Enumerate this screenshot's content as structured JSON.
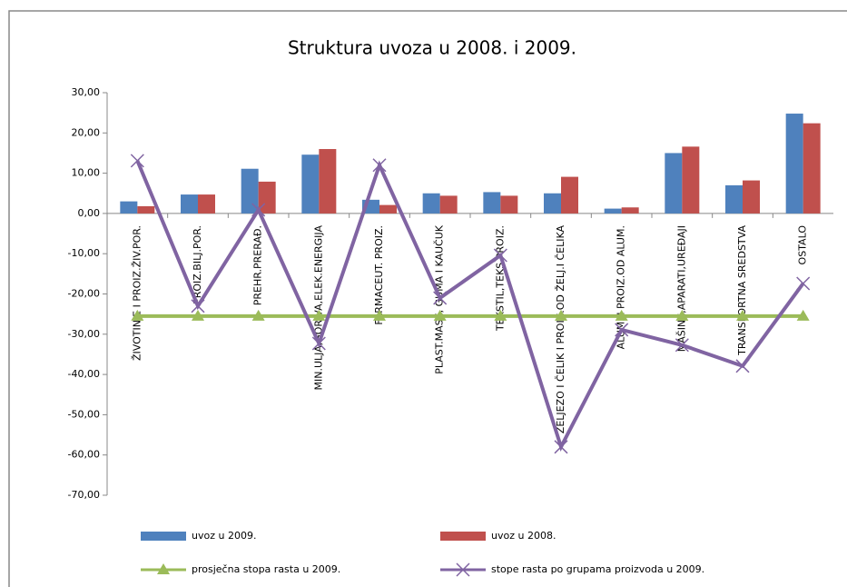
{
  "chart_data": {
    "type": "bar",
    "title": "Struktura uvoza u 2008. i 2009.",
    "categories": [
      "ŽIVOTINJE I PROIZ.ŽIV.POR.",
      "PROIZ.BILJ.POR.",
      "PREHR.PRERAĐ.",
      "MIN.ULJA,GORIVA,ELEK.ENERGIJA",
      "FARMACEUT. PROIZ.",
      "PLAST.MASE, GUMA I KAUČUK",
      "TEKSTIL,TEKS.PROIZ.",
      "ŽELJEZO I ČELIK I PROIZ.OD ŽELJ.I ČELIKA",
      "ALUM. I PROIZ.OD ALUM.",
      "MAŠINE,APARATI,UREĐAJI",
      "TRANSPORTNA SREDSTVA",
      "OSTALO"
    ],
    "series": [
      {
        "name": "uvoz u 2009.",
        "type": "bar",
        "color": "#4f81bd",
        "values": [
          3.0,
          4.7,
          11.1,
          14.6,
          3.4,
          5.0,
          5.3,
          5.0,
          1.2,
          15.0,
          7.0,
          24.8
        ]
      },
      {
        "name": "uvoz u 2008.",
        "type": "bar",
        "color": "#c0504d",
        "values": [
          1.8,
          4.7,
          7.9,
          16.0,
          2.1,
          4.4,
          4.4,
          9.1,
          1.5,
          16.6,
          8.2,
          22.4
        ]
      },
      {
        "name": "prosječna stopa rasta u 2009.",
        "type": "line",
        "marker": "triangle",
        "color": "#9bbb59",
        "values": [
          -25.5,
          -25.5,
          -25.5,
          -25.5,
          -25.5,
          -25.5,
          -25.5,
          -25.5,
          -25.5,
          -25.5,
          -25.5,
          -25.5
        ]
      },
      {
        "name": "stope rasta po grupama proizvoda u 2009.",
        "type": "line",
        "marker": "x",
        "color": "#8064a2",
        "values": [
          13.1,
          -23.0,
          0.9,
          -32.3,
          12.0,
          -21.0,
          -10.4,
          -58.0,
          -28.9,
          -32.7,
          -37.9,
          -17.4
        ]
      }
    ],
    "ylim": [
      -70,
      30
    ],
    "yticks": [
      {
        "value": -70,
        "label": "-70,00"
      },
      {
        "value": -60,
        "label": "-60,00"
      },
      {
        "value": -50,
        "label": "-50,00"
      },
      {
        "value": -40,
        "label": "-40,00"
      },
      {
        "value": -30,
        "label": "-30,00"
      },
      {
        "value": -20,
        "label": "-20,00"
      },
      {
        "value": -10,
        "label": "-10,00"
      },
      {
        "value": 0,
        "label": "0,00"
      },
      {
        "value": 10,
        "label": "10,00"
      },
      {
        "value": 20,
        "label": "20,00"
      },
      {
        "value": 30,
        "label": "30,00"
      }
    ],
    "grid": false
  }
}
